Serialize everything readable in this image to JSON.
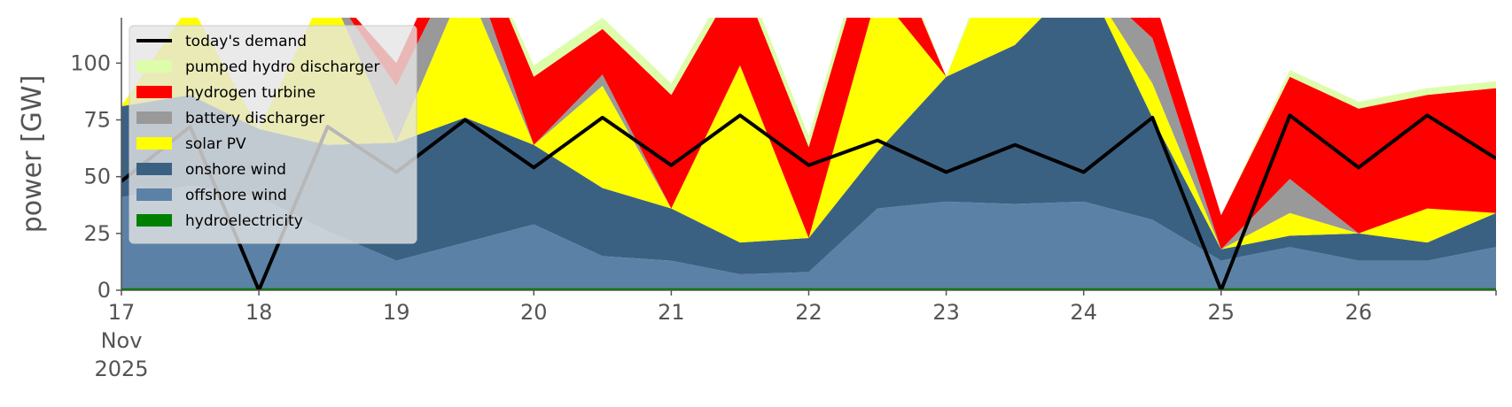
{
  "chart_data": {
    "type": "area",
    "ylabel": "power [GW]",
    "ylim": [
      0,
      120
    ],
    "xlim": [
      "2025-11-17",
      "2025-11-27"
    ],
    "x_ticks": [
      {
        "date": "2025-11-17",
        "label": "17",
        "sub1": "Nov",
        "sub2": "2025"
      },
      {
        "date": "2025-11-18",
        "label": "18"
      },
      {
        "date": "2025-11-19",
        "label": "19"
      },
      {
        "date": "2025-11-20",
        "label": "20"
      },
      {
        "date": "2025-11-21",
        "label": "21"
      },
      {
        "date": "2025-11-22",
        "label": "22"
      },
      {
        "date": "2025-11-23",
        "label": "23"
      },
      {
        "date": "2025-11-24",
        "label": "24"
      },
      {
        "date": "2025-11-25",
        "label": "25"
      },
      {
        "date": "2025-11-26",
        "label": "26"
      }
    ],
    "y_ticks": [
      0,
      25,
      50,
      75,
      100
    ],
    "grid": false,
    "legend_position": "top-left",
    "x": [
      "2025-11-17 00:00",
      "2025-11-17 12:00",
      "2025-11-18 00:00",
      "2025-11-18 12:00",
      "2025-11-19 00:00",
      "2025-11-19 12:00",
      "2025-11-20 00:00",
      "2025-11-20 12:00",
      "2025-11-21 00:00",
      "2025-11-21 12:00",
      "2025-11-22 00:00",
      "2025-11-22 12:00",
      "2025-11-23 00:00",
      "2025-11-23 12:00",
      "2025-11-24 00:00",
      "2025-11-24 12:00",
      "2025-11-25 00:00",
      "2025-11-25 12:00",
      "2025-11-26 00:00",
      "2025-11-26 12:00",
      "2025-11-27 00:00"
    ],
    "series": [
      {
        "name": "hydroelectricity",
        "color": "#008000",
        "values": [
          1,
          1,
          1,
          1,
          1,
          1,
          1,
          1,
          1,
          1,
          1,
          1,
          1,
          1,
          1,
          1,
          1,
          1,
          1,
          1,
          1
        ]
      },
      {
        "name": "offshore wind",
        "color": "#5b82a6",
        "values": [
          40,
          45,
          40,
          25,
          12,
          20,
          28,
          14,
          12,
          6,
          7,
          35,
          38,
          37,
          38,
          30,
          12,
          18,
          12,
          12,
          18
        ]
      },
      {
        "name": "onshore wind",
        "color": "#3b6182",
        "values": [
          40,
          40,
          30,
          38,
          52,
          55,
          35,
          30,
          23,
          14,
          15,
          25,
          55,
          70,
          100,
          45,
          5,
          5,
          12,
          8,
          15
        ]
      },
      {
        "name": "solar PV",
        "color": "#ffff00",
        "values": [
          0,
          40,
          0,
          70,
          0,
          60,
          0,
          45,
          0,
          78,
          0,
          70,
          0,
          60,
          0,
          15,
          0,
          10,
          0,
          15,
          0
        ]
      },
      {
        "name": "battery discharger",
        "color": "#999999",
        "values": [
          0,
          0,
          0,
          0,
          25,
          15,
          0,
          5,
          0,
          0,
          0,
          0,
          0,
          0,
          0,
          20,
          0,
          15,
          0,
          0,
          0
        ]
      },
      {
        "name": "hydrogen turbine",
        "color": "#ff0000",
        "values": [
          0,
          0,
          0,
          0,
          10,
          15,
          30,
          20,
          50,
          40,
          40,
          35,
          0,
          0,
          0,
          20,
          15,
          45,
          55,
          50,
          55
        ]
      },
      {
        "name": "pumped hydro discharger",
        "color": "#ddfdaa",
        "values": [
          0,
          0,
          0,
          0,
          0,
          0,
          5,
          5,
          5,
          5,
          5,
          5,
          0,
          5,
          0,
          0,
          0,
          3,
          3,
          3,
          3
        ]
      }
    ],
    "demand": {
      "name": "today's demand",
      "color": "#000000",
      "values": [
        48,
        72,
        0,
        72,
        52,
        75,
        54,
        76,
        55,
        77,
        55,
        66,
        52,
        64,
        52,
        76,
        0,
        77,
        54,
        77,
        58
      ]
    },
    "legend": [
      "today's demand",
      "pumped hydro discharger",
      "hydrogen turbine",
      "battery discharger",
      "solar PV",
      "onshore wind",
      "offshore wind",
      "hydroelectricity"
    ]
  }
}
